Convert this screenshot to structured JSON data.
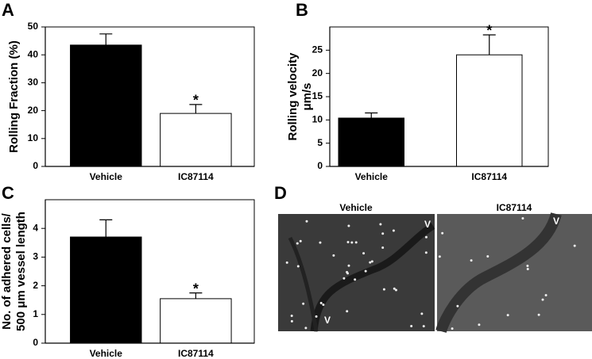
{
  "chart_data": [
    {
      "type": "bar",
      "panel": "A",
      "ylabel": [
        "Rolling Fraction (%)"
      ],
      "categories": [
        "Vehicle",
        "IC87114"
      ],
      "values": [
        43.5,
        19
      ],
      "errors": [
        4,
        3.2
      ],
      "colors": [
        "#000000",
        "#ffffff"
      ],
      "ylim": [
        0,
        50
      ],
      "yticks": [
        0,
        10,
        20,
        30,
        40,
        50
      ],
      "annotations": [
        {
          "text": "*",
          "at": "IC87114"
        }
      ]
    },
    {
      "type": "bar",
      "panel": "B",
      "ylabel": [
        "Rolling velocity",
        "μm/s"
      ],
      "categories": [
        "Vehicle",
        "IC87114"
      ],
      "values": [
        10.4,
        24
      ],
      "errors": [
        1.1,
        4.3
      ],
      "colors": [
        "#000000",
        "#ffffff"
      ],
      "ylim": [
        0,
        30
      ],
      "yticks": [
        0,
        5,
        10,
        15,
        20,
        25
      ],
      "annotations": [
        {
          "text": "*",
          "at": "IC87114"
        }
      ]
    },
    {
      "type": "bar",
      "panel": "C",
      "ylabel": [
        "No. of adhered cells/",
        "500 μm vessel length"
      ],
      "categories": [
        "Vehicle",
        "IC87114"
      ],
      "values": [
        3.7,
        1.55
      ],
      "errors": [
        0.6,
        0.2
      ],
      "colors": [
        "#000000",
        "#ffffff"
      ],
      "ylim": [
        0,
        5
      ],
      "yticks": [
        0,
        1,
        2,
        3,
        4
      ],
      "annotations": [
        {
          "text": "*",
          "at": "IC87114"
        }
      ]
    }
  ],
  "panel_d": {
    "label": "D",
    "images": [
      {
        "title": "Vehicle",
        "markers": [
          "V",
          "V"
        ]
      },
      {
        "title": "IC87114",
        "markers": [
          "V"
        ]
      }
    ]
  }
}
